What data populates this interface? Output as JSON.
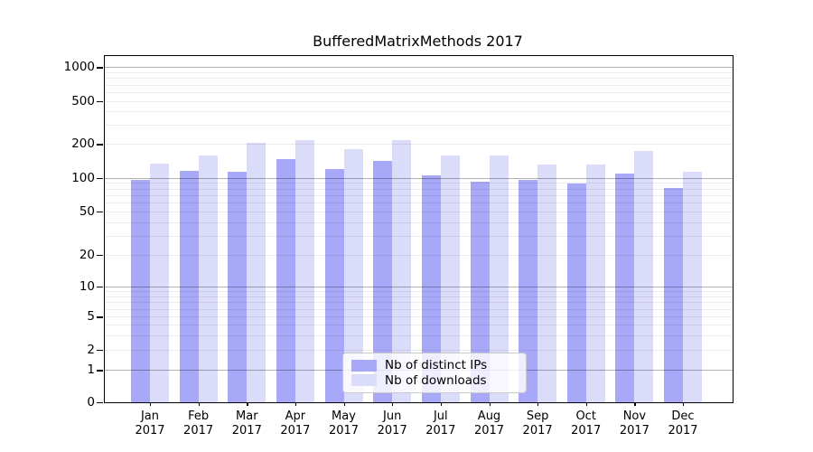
{
  "title": "BufferedMatrixMethods 2017",
  "legend": {
    "items": [
      {
        "label": "Nb of distinct IPs",
        "color": "#a8a8f8"
      },
      {
        "label": "Nb of downloads",
        "color": "#dbdbfa"
      }
    ]
  },
  "y_axis": {
    "tick_values": [
      1000,
      500,
      200,
      100,
      50,
      20,
      10,
      5,
      2,
      1,
      0
    ]
  },
  "x_axis": {
    "months": [
      "Jan",
      "Feb",
      "Mar",
      "Apr",
      "May",
      "Jun",
      "Jul",
      "Aug",
      "Sep",
      "Oct",
      "Nov",
      "Dec"
    ],
    "year": "2017"
  },
  "chart_data": {
    "type": "bar",
    "title": "BufferedMatrixMethods 2017",
    "categories": [
      "Jan 2017",
      "Feb 2017",
      "Mar 2017",
      "Apr 2017",
      "May 2017",
      "Jun 2017",
      "Jul 2017",
      "Aug 2017",
      "Sep 2017",
      "Oct 2017",
      "Nov 2017",
      "Dec 2017"
    ],
    "series": [
      {
        "name": "Nb of distinct IPs",
        "color": "#a8a8f8",
        "values": [
          95,
          116,
          114,
          147,
          120,
          141,
          106,
          92,
          96,
          89,
          109,
          81
        ]
      },
      {
        "name": "Nb of downloads",
        "color": "#dbdbfa",
        "values": [
          135,
          159,
          206,
          216,
          180,
          217,
          159,
          158,
          131,
          132,
          172,
          113
        ]
      }
    ],
    "yscale": "log (with 0 baseline)",
    "y_ticks": [
      0,
      1,
      2,
      5,
      10,
      20,
      50,
      100,
      200,
      500,
      1000
    ],
    "ylim": [
      0,
      1400
    ],
    "grid": true,
    "grid_over_bars": true,
    "legend_position": "lower center"
  }
}
